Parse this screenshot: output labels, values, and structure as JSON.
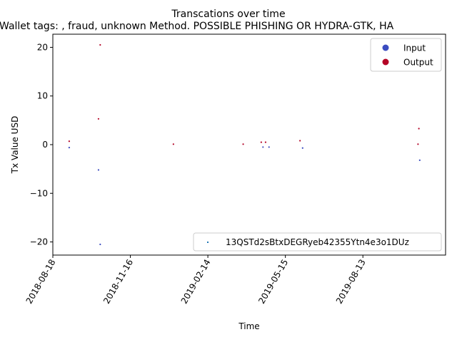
{
  "chart_data": {
    "type": "scatter",
    "title": "Transcations over time",
    "subtitle": "Wallet tags: , fraud, unknown Method. POSSIBLE PHISHING OR HYDRA-GTK, HA",
    "xlabel": "Time",
    "ylabel": "Tx Value USD",
    "x_ticks": [
      "2018-08-18",
      "2018-11-16",
      "2019-02-14",
      "2019-05-15",
      "2019-08-13"
    ],
    "y_ticks": [
      -20,
      -10,
      0,
      10,
      20
    ],
    "xlim": [
      "2018-08-18",
      "2019-11-17"
    ],
    "ylim": [
      -22.7,
      22.7
    ],
    "grid": false,
    "legend_top": {
      "placement": "upper right",
      "entries": [
        {
          "label": "Input",
          "color": "#3b4cc0"
        },
        {
          "label": "Output",
          "color": "#b40426"
        }
      ]
    },
    "legend_bottom": {
      "placement": "lower right",
      "entries": [
        {
          "label": "13QSTd2sBtxDEGRyeb42355Ytn4e3o1DUz",
          "color": "#1f77b4"
        }
      ]
    },
    "series": [
      {
        "name": "Input",
        "color": "#3b4cc0",
        "points": [
          {
            "x": "2018-09-06",
            "y": -0.6
          },
          {
            "x": "2018-10-10",
            "y": -5.2
          },
          {
            "x": "2018-10-12",
            "y": -20.5
          },
          {
            "x": "2019-04-19",
            "y": -0.5
          },
          {
            "x": "2019-04-26",
            "y": -0.5
          },
          {
            "x": "2019-06-04",
            "y": -0.7
          },
          {
            "x": "2019-10-18",
            "y": -3.2
          }
        ]
      },
      {
        "name": "Output",
        "color": "#b40426",
        "points": [
          {
            "x": "2018-09-06",
            "y": 0.7
          },
          {
            "x": "2018-10-10",
            "y": 5.3
          },
          {
            "x": "2018-10-12",
            "y": 20.5
          },
          {
            "x": "2019-01-05",
            "y": 0.1
          },
          {
            "x": "2019-03-27",
            "y": 0.1
          },
          {
            "x": "2019-04-17",
            "y": 0.5
          },
          {
            "x": "2019-04-22",
            "y": 0.5
          },
          {
            "x": "2019-06-01",
            "y": 0.8
          },
          {
            "x": "2019-10-16",
            "y": 0.1
          },
          {
            "x": "2019-10-17",
            "y": 3.3
          }
        ]
      }
    ]
  }
}
